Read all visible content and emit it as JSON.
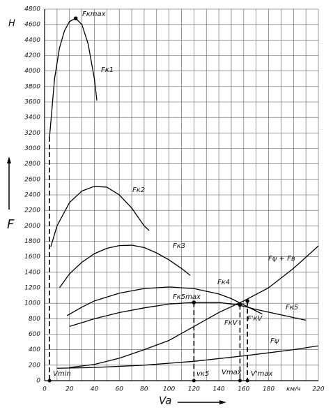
{
  "chart_data": {
    "type": "line",
    "y_unit": "H",
    "ylabel": "F",
    "xlabel": "Va",
    "xlim": [
      0,
      220
    ],
    "ylim": [
      0,
      4800
    ],
    "xticks": [
      0,
      20,
      40,
      60,
      80,
      100,
      120,
      140,
      160,
      180,
      {
        "value": 200,
        "label": "км/ч"
      },
      220
    ],
    "yticks": [
      0,
      200,
      400,
      600,
      800,
      1000,
      1200,
      1400,
      1600,
      1800,
      2000,
      2200,
      2400,
      2600,
      2800,
      3000,
      3200,
      3400,
      3600,
      3800,
      4000,
      4200,
      4400,
      4600,
      4800
    ],
    "grid": true,
    "color": "#000000",
    "series": [
      {
        "name": "Fк1",
        "x": [
          4,
          8,
          12,
          16,
          20,
          25,
          30,
          35,
          40,
          42
        ],
        "values": [
          3150,
          3900,
          4300,
          4520,
          4640,
          4680,
          4600,
          4350,
          3900,
          3620
        ]
      },
      {
        "name": "Fк2",
        "x": [
          5,
          10,
          20,
          30,
          40,
          50,
          60,
          70,
          80,
          84
        ],
        "values": [
          1730,
          2000,
          2300,
          2450,
          2510,
          2500,
          2400,
          2230,
          2000,
          1940
        ]
      },
      {
        "name": "Fк3",
        "x": [
          12,
          20,
          30,
          40,
          50,
          60,
          70,
          80,
          90,
          100,
          110,
          117
        ],
        "values": [
          1200,
          1380,
          1530,
          1640,
          1710,
          1745,
          1750,
          1720,
          1650,
          1560,
          1450,
          1360
        ]
      },
      {
        "name": "Fк4",
        "x": [
          18,
          30,
          40,
          60,
          80,
          100,
          120,
          140,
          150,
          160,
          170,
          175
        ],
        "values": [
          840,
          950,
          1030,
          1130,
          1190,
          1210,
          1190,
          1120,
          1060,
          980,
          900,
          860
        ]
      },
      {
        "name": "Fк5",
        "x": [
          20,
          40,
          60,
          80,
          100,
          120,
          140,
          155,
          170,
          190,
          210
        ],
        "values": [
          700,
          800,
          880,
          940,
          990,
          1010,
          1010,
          980,
          920,
          850,
          780
        ]
      },
      {
        "name": "Fψ + Fв",
        "x": [
          20,
          40,
          60,
          80,
          100,
          120,
          140,
          160,
          180,
          200,
          220
        ],
        "values": [
          170,
          210,
          290,
          400,
          520,
          700,
          880,
          1030,
          1200,
          1450,
          1740
        ]
      },
      {
        "name": "Fψ",
        "x": [
          10,
          40,
          80,
          120,
          160,
          200,
          220
        ],
        "values": [
          160,
          170,
          200,
          250,
          320,
          400,
          450
        ]
      }
    ],
    "points": [
      {
        "name": "Fкmax",
        "axis_name": "Vmin",
        "x": 4,
        "y": 3150,
        "peak_x": 25,
        "peak_y": 4680
      },
      {
        "name": "Fк5max",
        "axis_name": "vк5",
        "x": 120,
        "y": 1010
      },
      {
        "name": "FкV",
        "axis_name": "Vmax",
        "x": 157,
        "y": 980
      },
      {
        "name": "F'кV",
        "axis_name": "V'max",
        "x": 163,
        "y": 1030
      }
    ]
  }
}
